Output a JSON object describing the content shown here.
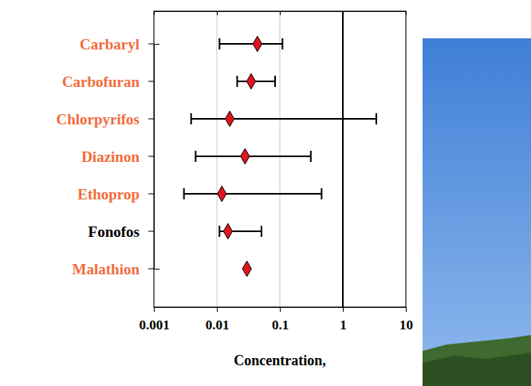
{
  "chart_data": {
    "type": "dot",
    "orientation": "horizontal",
    "log": "x",
    "x_label": "Concentration,",
    "categories": [
      "Carbaryl",
      "Carbofuran",
      "Chlorpyrifos",
      "Diazinon",
      "Ethoprop",
      "Fonofos",
      "Malathion"
    ],
    "values": [
      0.044,
      0.035,
      0.016,
      0.028,
      0.012,
      0.015,
      0.03
    ],
    "low": [
      0.011,
      0.021,
      0.0039,
      0.0046,
      0.003,
      0.011,
      null
    ],
    "high": [
      0.11,
      0.084,
      3.4,
      0.31,
      0.46,
      0.051,
      null
    ],
    "color": "#e0141e",
    "marker": "diamond",
    "colors": [
      "#f26b3a",
      "#f26b3a",
      "#f26b3a",
      "#f26b3a",
      "#f26b3a",
      "#000000",
      "#f26b3a"
    ],
    "xlim": [
      0.001,
      10
    ],
    "xticks": [
      0.001,
      0.01,
      0.1,
      1,
      10
    ],
    "reference_line": 1,
    "grid": true
  }
}
